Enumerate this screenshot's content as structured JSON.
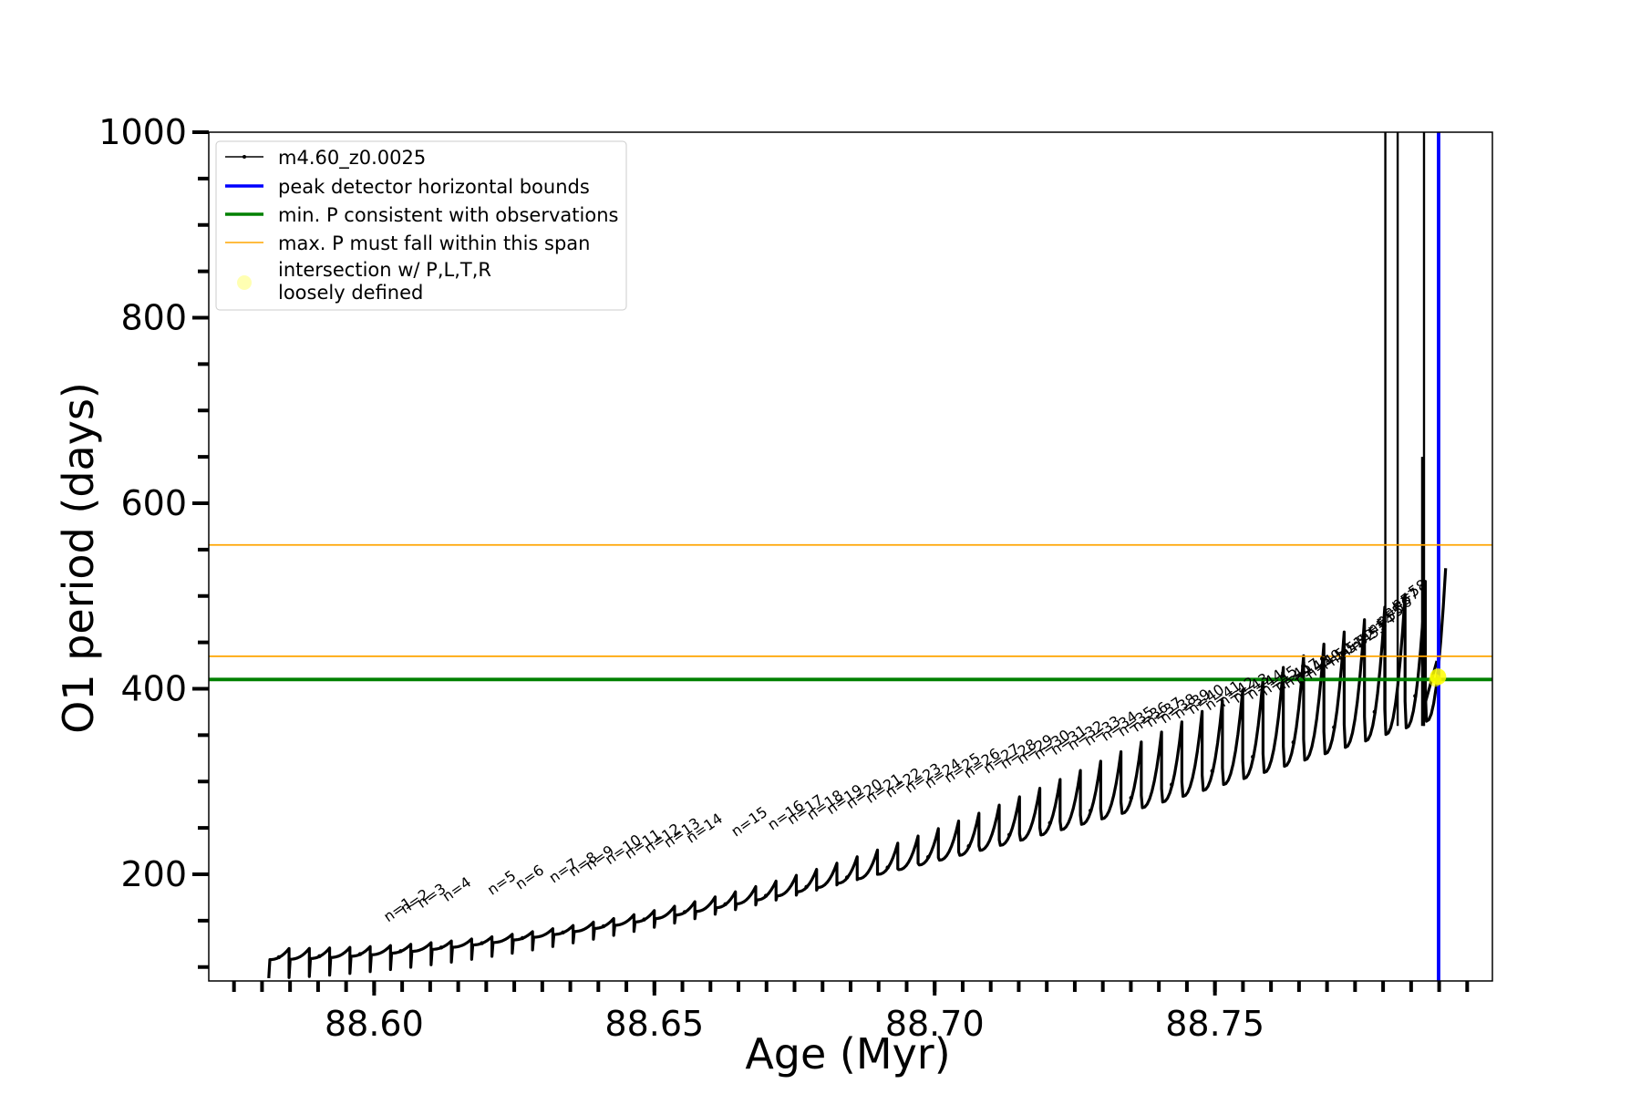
{
  "chart_data": {
    "type": "line",
    "title": "",
    "xlabel": "Age (Myr)",
    "ylabel": "O1 period (days)",
    "xlim": [
      88.5705,
      88.7995
    ],
    "ylim": [
      85,
      1000
    ],
    "x_ticks": [
      88.6,
      88.65,
      88.7,
      88.75
    ],
    "x_tick_labels": [
      "88.60",
      "88.65",
      "88.70",
      "88.75"
    ],
    "y_ticks": [
      200,
      400,
      600,
      800,
      1000
    ],
    "y_tick_labels": [
      "200",
      "400",
      "600",
      "800",
      "1000"
    ],
    "grid": false,
    "legend_position": "top-left",
    "colors": {
      "series": "#000000",
      "bounds": "#0000ff",
      "min_p": "#008000",
      "max_p": "#ffa500",
      "intersection": "#ffff00"
    },
    "series": [
      {
        "name": "m4.60_z0.0025",
        "kind": "thermal-pulse-sawtooth",
        "n_pulses": 58,
        "x_start": 88.5812,
        "pulse_spacing": 0.00362,
        "trough_period_start": 100,
        "trough_period_end": 395,
        "peak_period_start": 120,
        "peak_period_end": 530,
        "final_spikes_x": [
          88.7804,
          88.7826,
          88.7873
        ],
        "final_spike_peak": 650
      }
    ],
    "reference_lines": [
      {
        "name": "peak detector horizontal bounds",
        "orientation": "vertical",
        "x": 88.7899
      },
      {
        "name": "min. P consistent with observations",
        "orientation": "horizontal",
        "y": 410
      },
      {
        "name": "max. P must fall within this span",
        "orientation": "horizontal",
        "y": [
          435,
          555
        ]
      }
    ],
    "intersection_points": [
      {
        "x": 88.7898,
        "y": 413
      }
    ],
    "legend": [
      {
        "key": "series",
        "label": "m4.60_z0.0025"
      },
      {
        "key": "bounds",
        "label": "peak detector horizontal bounds"
      },
      {
        "key": "min_p",
        "label": "min. P consistent with observations"
      },
      {
        "key": "max_p",
        "label": "max. P must fall within this span"
      },
      {
        "key": "intersection",
        "label": "intersection w/ P,L,T,R",
        "label_line2": "loosely defined"
      }
    ],
    "pulse_labels": [
      "n=1",
      "n=2",
      "n=3",
      "n=4",
      "n=5",
      "n=6",
      "n=7",
      "n=8",
      "n=9",
      "n=10",
      "n=11",
      "n=12",
      "n=13",
      "n=14",
      "n=15",
      "n=16",
      "n=17",
      "n=18",
      "n=19",
      "n=20",
      "n=21",
      "n=22",
      "n=23",
      "n=24",
      "n=25",
      "n=26",
      "n=27",
      "n=28",
      "n=29",
      "n=30",
      "n=31",
      "n=32",
      "n=33",
      "n=34",
      "n=35",
      "n=36",
      "n=37",
      "n=38",
      "n=39",
      "n=40",
      "n=41",
      "n=42",
      "n=43",
      "n=44",
      "n=45",
      "n=46",
      "n=47",
      "n=48",
      "n=49",
      "n=50",
      "n=51",
      "n=52",
      "n=53",
      "n=54",
      "n=55",
      "n=56",
      "n=57",
      "n=58"
    ],
    "pulse_label_x": [
      88.6025,
      88.6055,
      88.6085,
      88.613,
      88.621,
      88.626,
      88.632,
      88.6355,
      88.6385,
      88.642,
      88.6455,
      88.649,
      88.6525,
      88.6565,
      88.6645,
      88.671,
      88.6745,
      88.678,
      88.6815,
      88.685,
      88.6885,
      88.692,
      88.6955,
      88.699,
      88.7025,
      88.706,
      88.7095,
      88.7125,
      88.7155,
      88.7185,
      88.7215,
      88.7245,
      88.7275,
      88.7305,
      88.7335,
      88.736,
      88.7385,
      88.741,
      88.7435,
      88.746,
      88.749,
      88.7515,
      88.754,
      88.7565,
      88.759,
      88.7615,
      88.763,
      88.765,
      88.767,
      88.769,
      88.771,
      88.773,
      88.775,
      88.7765,
      88.778,
      88.7795,
      88.7808,
      88.7822
    ],
    "pulse_label_y": [
      148,
      157,
      163,
      170,
      177,
      183,
      190,
      197,
      204,
      210,
      216,
      222,
      228,
      233,
      240,
      247,
      253,
      258,
      264,
      270,
      276,
      282,
      287,
      292,
      298,
      303,
      308,
      313,
      318,
      323,
      328,
      333,
      338,
      343,
      348,
      353,
      358,
      362,
      367,
      372,
      376,
      380,
      384,
      388,
      392,
      396,
      400,
      404,
      410,
      417,
      424,
      432,
      440,
      449,
      458,
      467,
      476,
      485
    ]
  }
}
